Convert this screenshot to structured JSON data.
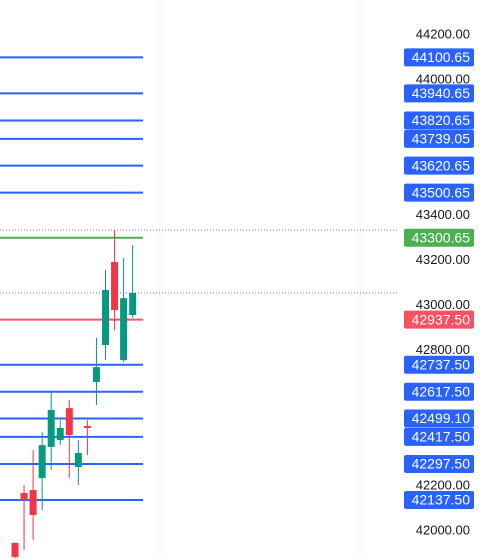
{
  "chart_data": {
    "type": "candlestick",
    "categories": [
      null,
      null,
      null,
      null,
      null,
      null,
      null,
      null,
      null,
      null,
      null,
      null,
      null,
      null
    ],
    "open": [
      41947,
      42169,
      42182,
      42235,
      42373,
      42404,
      42545,
      42284,
      42466,
      42661,
      42825,
      43193,
      42758,
      42958
    ],
    "high": [
      41950,
      42204,
      42359,
      42439,
      42616,
      42492,
      42581,
      42404,
      42492,
      42856,
      43158,
      43335,
      43211,
      43268
    ],
    "low": [
      41880,
      41916,
      41960,
      42093,
      42271,
      42381,
      42235,
      42204,
      42337,
      42559,
      42758,
      42891,
      42750,
      42945
    ],
    "close": [
      41885,
      42137,
      42071,
      42381,
      42537,
      42457,
      42426,
      42346,
      42457,
      42727,
      43069,
      42980,
      43033,
      43056
    ],
    "up_color": "#089981",
    "down_color": "#f23645",
    "ylim": [
      41876,
      44355
    ],
    "yticks": [
      {
        "value": 44200,
        "label": "44200.00"
      },
      {
        "value": 44000,
        "label": "44000.00"
      },
      {
        "value": 43400,
        "label": "43400.00"
      },
      {
        "value": 43200,
        "label": "43200.00"
      },
      {
        "value": 43000,
        "label": "43000.00"
      },
      {
        "value": 42800,
        "label": "42800.00"
      },
      {
        "value": 42200,
        "label": "42200.00"
      },
      {
        "value": 42000,
        "label": "42000.00"
      }
    ],
    "levels": {
      "values": [
        44100.65,
        43940.65,
        43820.65,
        43739.05,
        43620.65,
        43500.65,
        43300.65,
        42937.5,
        42737.5,
        42617.5,
        42499.1,
        42417.5,
        42297.5,
        42137.5
      ],
      "value_labels": [
        "44100.65",
        "43940.65",
        "43820.65",
        "43739.05",
        "43620.65",
        "43500.65",
        "43300.65",
        "42937.50",
        "42737.50",
        "42617.50",
        "42499.10",
        "42417.50",
        "42297.50",
        "42137.50"
      ],
      "colors": [
        "#2962ff",
        "#2962ff",
        "#2962ff",
        "#2962ff",
        "#2962ff",
        "#2962ff",
        "#4caf50",
        "#f7525f",
        "#2962ff",
        "#2962ff",
        "#2962ff",
        "#2962ff",
        "#2962ff",
        "#2962ff"
      ]
    },
    "dotted_lines": [
      43335,
      43056
    ]
  }
}
